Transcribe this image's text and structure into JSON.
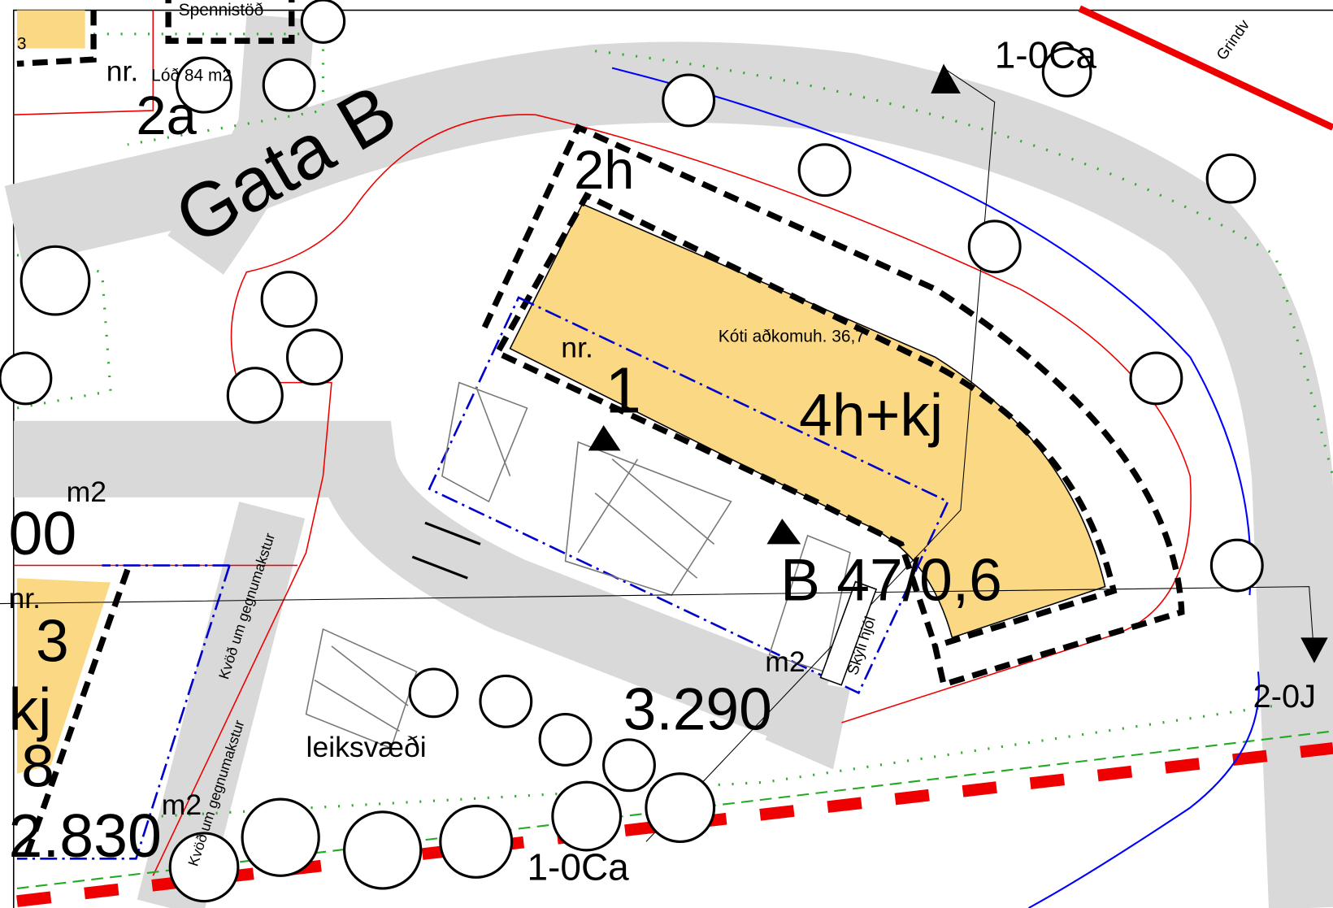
{
  "map": {
    "labels": {
      "substation": "Spennistöð",
      "lot_nr_2a": "nr.",
      "lot_area_2a": "Lóð 84 m2",
      "lot_2a": "2a",
      "street": "Gata B",
      "zone_top": "1-0Ca",
      "road_grindv": "Grindv",
      "floors_2h": "2h",
      "entrance_level": "Kóti aðkomuh. 36,7",
      "lot_nr_1": "nr.",
      "lot_1": "1",
      "floors_1": "4h+kj",
      "building_code": "B 47/0,6",
      "bike_shelter": "Skýli hjól",
      "area_unit_1": "m2",
      "area_1": "3.290",
      "playground": "leiksvæði",
      "zone_right": "2-0J",
      "area_unit_left_top": "m2",
      "area_left_top": "00",
      "lot_nr_3": "nr.",
      "lot_3": "3",
      "floors_3": "kj",
      "ratio_3": "8",
      "area_unit_3": "m2",
      "area_3": "2.830",
      "easement_1": "Kvöð um gegnumakstur",
      "easement_2": "Kvöð um gegnumakstur",
      "zone_bottom": "1-0Ca",
      "left_corner": "3"
    }
  }
}
